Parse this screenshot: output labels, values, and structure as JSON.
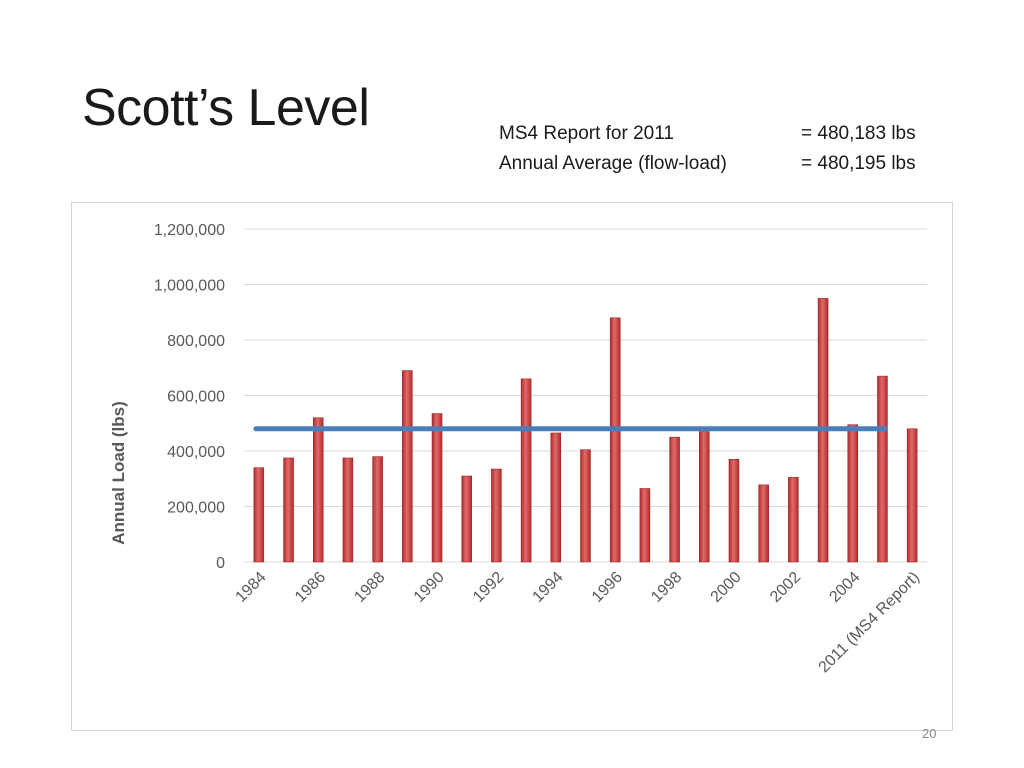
{
  "slide": {
    "title": "Scott’s Level",
    "page_number": "20"
  },
  "info": {
    "rows": [
      {
        "label": "MS4 Report for 2011",
        "value": "= 480,183 lbs"
      },
      {
        "label": "Annual Average (flow-load)",
        "value": "= 480,195 lbs"
      }
    ]
  },
  "colors": {
    "bar": "#b52a2a",
    "bar_highlight": "#e06a6a",
    "average_line": "#4a7ebb",
    "grid": "#d9d9d9",
    "axis_text": "#595959"
  },
  "chart_data": {
    "type": "bar",
    "title": "",
    "xlabel": "",
    "ylabel": "Annual Load (lbs)",
    "ylim": [
      0,
      1200000
    ],
    "yticks": [
      0,
      200000,
      400000,
      600000,
      800000,
      1000000,
      1200000
    ],
    "ytick_labels": [
      "0",
      "200,000",
      "400,000",
      "600,000",
      "800,000",
      "1,000,000",
      "1,200,000"
    ],
    "grid": true,
    "categories": [
      "1984",
      "1985",
      "1986",
      "1987",
      "1988",
      "1989",
      "1990",
      "1991",
      "1992",
      "1993",
      "1994",
      "1995",
      "1996",
      "1997",
      "1998",
      "1999",
      "2000",
      "2001",
      "2002",
      "2003",
      "2004",
      "2005",
      "2011 (MS4 Report)"
    ],
    "xtick_labels": [
      "1984",
      "",
      "1986",
      "",
      "1988",
      "",
      "1990",
      "",
      "1992",
      "",
      "1994",
      "",
      "1996",
      "",
      "1998",
      "",
      "2000",
      "",
      "2002",
      "",
      "2004",
      "",
      "2011 (MS4 Report)"
    ],
    "series": [
      {
        "values": [
          340000,
          375000,
          520000,
          375000,
          380000,
          690000,
          535000,
          310000,
          335000,
          660000,
          465000,
          405000,
          880000,
          265000,
          450000,
          470000,
          370000,
          278000,
          305000,
          950000,
          495000,
          670000,
          480183
        ]
      }
    ],
    "average_line": {
      "value": 480195,
      "from_category": "1984",
      "to_category": "2005"
    }
  }
}
